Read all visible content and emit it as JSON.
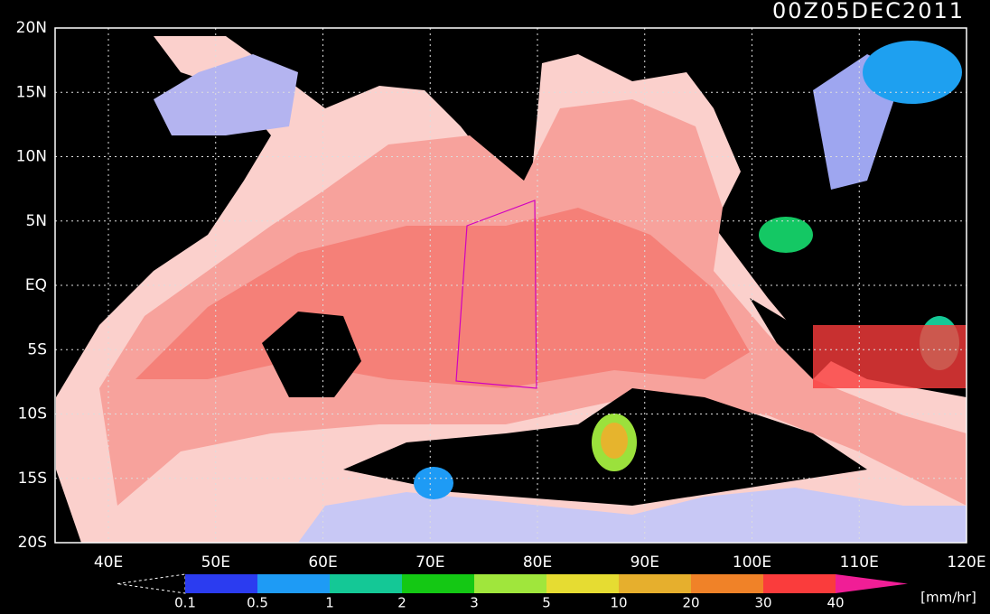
{
  "title": "00Z05DEC2011",
  "lat_labels": [
    "20N",
    "15N",
    "10N",
    "5N",
    "EQ",
    "5S",
    "10S",
    "15S",
    "20S"
  ],
  "lon_labels": [
    "40E",
    "50E",
    "60E",
    "70E",
    "80E",
    "90E",
    "100E",
    "110E",
    "120E"
  ],
  "colorbar": {
    "labels": [
      "0.1",
      "0.5",
      "1",
      "2",
      "3",
      "5",
      "10",
      "20",
      "30",
      "40"
    ],
    "colors": [
      "#2b3cf0",
      "#1e9bf5",
      "#14c896",
      "#14c814",
      "#a0e63c",
      "#e6dc32",
      "#e6af2d",
      "#f08228",
      "#fa3c3c"
    ],
    "over_color": "#f01e96",
    "unit": "[mm/hr]"
  }
}
